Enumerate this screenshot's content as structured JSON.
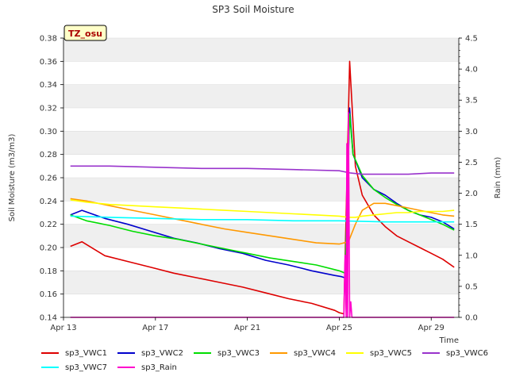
{
  "chart_data": {
    "type": "line",
    "title": "SP3 Soil Moisture",
    "badge": "TZ_osu",
    "xlabel": "Time",
    "ylabel": "Soil Moisture (m3/m3)",
    "y2label": "Rain (mm)",
    "xlim": [
      13,
      30.2
    ],
    "ylim": [
      0.14,
      0.38
    ],
    "y2lim": [
      0,
      4.5
    ],
    "x_ticks": [
      13,
      17,
      21,
      25,
      29
    ],
    "x_tick_labels": [
      "Apr 13",
      "Apr 17",
      "Apr 21",
      "Apr 25",
      "Apr 29"
    ],
    "y_tick_labels": [
      "0.14",
      "0.16",
      "0.18",
      "0.20",
      "0.22",
      "0.24",
      "0.26",
      "0.28",
      "0.30",
      "0.32",
      "0.34",
      "0.36",
      "0.38"
    ],
    "y2_tick_labels": [
      "0.0",
      "0.5",
      "1.0",
      "1.5",
      "2.0",
      "2.5",
      "3.0",
      "3.5",
      "4.0",
      "4.5"
    ],
    "grid": "horizontal bands",
    "legend_position": "bottom",
    "series": [
      {
        "name": "sp3_VWC1",
        "color": "#dd0000",
        "axis": "left",
        "x": [
          13.3,
          13.8,
          14.8,
          15.8,
          16.8,
          17.8,
          18.8,
          19.8,
          20.8,
          21.8,
          22.8,
          23.8,
          24.8,
          25.0,
          25.2,
          25.45,
          25.7,
          26.0,
          26.5,
          27.0,
          27.5,
          28.0,
          28.5,
          29.0,
          29.5,
          30.0
        ],
        "y": [
          0.201,
          0.205,
          0.193,
          0.188,
          0.183,
          0.178,
          0.174,
          0.17,
          0.166,
          0.161,
          0.156,
          0.152,
          0.146,
          0.144,
          0.143,
          0.36,
          0.27,
          0.245,
          0.228,
          0.218,
          0.21,
          0.205,
          0.2,
          0.195,
          0.19,
          0.183
        ]
      },
      {
        "name": "sp3_VWC2",
        "color": "#0000cc",
        "axis": "left",
        "x": [
          13.3,
          13.8,
          14.8,
          15.8,
          16.8,
          17.8,
          18.8,
          19.8,
          20.8,
          21.8,
          22.8,
          23.8,
          24.8,
          25.1,
          25.25,
          25.45,
          25.6,
          26.0,
          26.5,
          27.0,
          27.5,
          28.0,
          28.5,
          29.0,
          29.5,
          30.0
        ],
        "y": [
          0.228,
          0.232,
          0.225,
          0.22,
          0.214,
          0.208,
          0.204,
          0.199,
          0.195,
          0.189,
          0.185,
          0.18,
          0.176,
          0.175,
          0.174,
          0.32,
          0.28,
          0.26,
          0.25,
          0.245,
          0.238,
          0.232,
          0.228,
          0.226,
          0.222,
          0.216
        ]
      },
      {
        "name": "sp3_VWC3",
        "color": "#00dd00",
        "axis": "left",
        "x": [
          13.3,
          14.0,
          15.0,
          16.0,
          17.0,
          18.0,
          19.0,
          20.0,
          21.0,
          22.0,
          23.0,
          24.0,
          25.0,
          25.25,
          25.45,
          25.6,
          26.0,
          26.5,
          27.0,
          27.5,
          28.0,
          28.5,
          29.0,
          29.5,
          30.0
        ],
        "y": [
          0.228,
          0.223,
          0.219,
          0.214,
          0.21,
          0.207,
          0.203,
          0.199,
          0.195,
          0.191,
          0.188,
          0.185,
          0.18,
          0.178,
          0.315,
          0.28,
          0.262,
          0.25,
          0.243,
          0.237,
          0.232,
          0.228,
          0.224,
          0.22,
          0.215
        ]
      },
      {
        "name": "sp3_VWC4",
        "color": "#ff9900",
        "axis": "left",
        "x": [
          13.3,
          14.0,
          15.0,
          16.0,
          17.0,
          18.0,
          19.0,
          20.0,
          21.0,
          22.0,
          23.0,
          24.0,
          25.0,
          25.4,
          25.7,
          26.0,
          26.5,
          27.0,
          27.5,
          28.0,
          28.5,
          29.0,
          29.5,
          30.0
        ],
        "y": [
          0.242,
          0.24,
          0.236,
          0.232,
          0.228,
          0.224,
          0.22,
          0.216,
          0.213,
          0.21,
          0.207,
          0.204,
          0.203,
          0.205,
          0.22,
          0.232,
          0.238,
          0.238,
          0.236,
          0.234,
          0.232,
          0.23,
          0.228,
          0.227
        ]
      },
      {
        "name": "sp3_VWC5",
        "color": "#ffff00",
        "axis": "left",
        "x": [
          13.3,
          14.0,
          15.0,
          16.0,
          17.0,
          18.0,
          19.0,
          20.0,
          21.0,
          22.0,
          23.0,
          24.0,
          25.0,
          25.4,
          25.7,
          26.0,
          26.5,
          27.0,
          27.5,
          28.0,
          28.5,
          29.0,
          29.5,
          30.0
        ],
        "y": [
          0.241,
          0.239,
          0.237,
          0.236,
          0.235,
          0.234,
          0.233,
          0.232,
          0.231,
          0.23,
          0.229,
          0.228,
          0.227,
          0.226,
          0.226,
          0.227,
          0.228,
          0.229,
          0.23,
          0.23,
          0.231,
          0.231,
          0.231,
          0.232
        ]
      },
      {
        "name": "sp3_VWC6",
        "color": "#9933cc",
        "axis": "left",
        "x": [
          13.3,
          15.0,
          17.0,
          19.0,
          21.0,
          23.0,
          25.0,
          25.5,
          26.0,
          27.0,
          28.0,
          29.0,
          30.0
        ],
        "y": [
          0.27,
          0.27,
          0.269,
          0.268,
          0.268,
          0.267,
          0.266,
          0.264,
          0.263,
          0.263,
          0.263,
          0.264,
          0.264
        ]
      },
      {
        "name": "sp3_VWC7",
        "color": "#00ffff",
        "axis": "left",
        "x": [
          13.3,
          15.0,
          17.0,
          19.0,
          21.0,
          23.0,
          25.0,
          27.0,
          29.0,
          30.0
        ],
        "y": [
          0.227,
          0.226,
          0.225,
          0.224,
          0.224,
          0.223,
          0.223,
          0.222,
          0.222,
          0.222
        ]
      },
      {
        "name": "sp3_Rain",
        "color": "#ff00cc",
        "axis": "right",
        "x": [
          13.3,
          25.2,
          25.25,
          25.3,
          25.33,
          25.36,
          25.4,
          25.45,
          25.5,
          25.55,
          25.6,
          30.0
        ],
        "y": [
          0,
          0,
          1.0,
          0,
          2.8,
          0,
          3.3,
          0,
          0.25,
          0,
          0,
          0
        ]
      }
    ]
  }
}
